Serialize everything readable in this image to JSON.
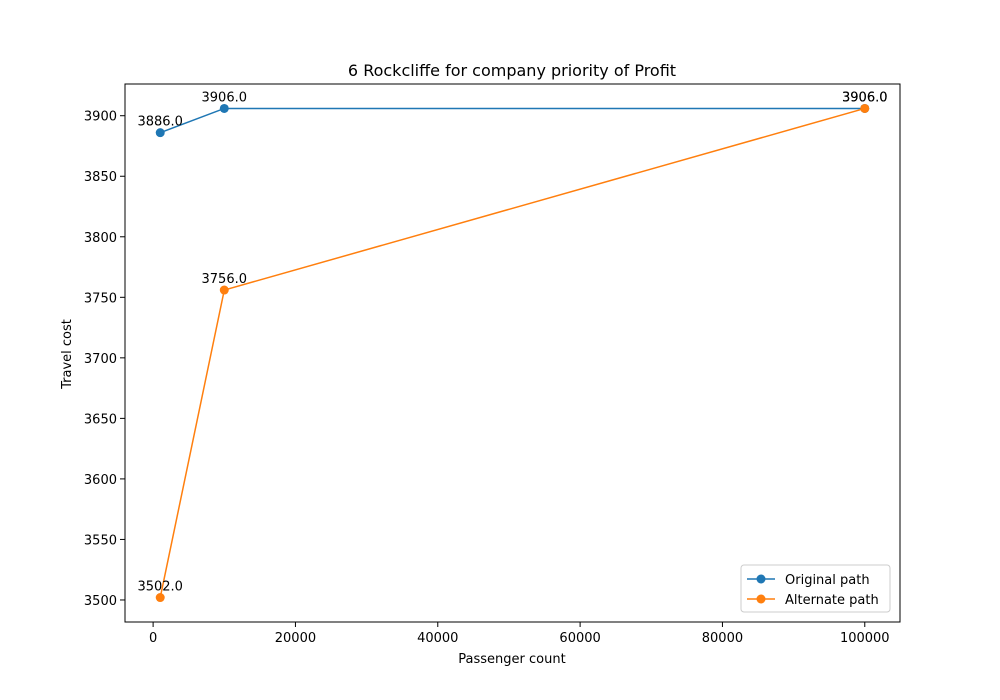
{
  "chart_data": {
    "type": "line",
    "title": "6 Rockcliffe for company priority of Profit",
    "xlabel": "Passenger count",
    "ylabel": "Travel cost",
    "xlim": [
      -3950,
      104950
    ],
    "ylim": [
      3481.8,
      3926.2
    ],
    "xticks": [
      0,
      20000,
      40000,
      60000,
      80000,
      100000
    ],
    "xtick_labels": [
      "0",
      "20000",
      "40000",
      "60000",
      "80000",
      "100000"
    ],
    "yticks": [
      3500,
      3550,
      3600,
      3650,
      3700,
      3750,
      3800,
      3850,
      3900
    ],
    "ytick_labels": [
      "3500",
      "3550",
      "3600",
      "3650",
      "3700",
      "3750",
      "3800",
      "3850",
      "3900"
    ],
    "grid": false,
    "legend_position": "lower-right",
    "series": [
      {
        "name": "Original path",
        "color": "#1f77b4",
        "marker": "circle",
        "x": [
          1000,
          10000,
          100000
        ],
        "y": [
          3886.0,
          3906.0,
          3906.0
        ],
        "labels": [
          "3886.0",
          "3906.0",
          "3906.0"
        ]
      },
      {
        "name": "Alternate path",
        "color": "#ff7f0e",
        "marker": "circle",
        "x": [
          1000,
          10000,
          100000
        ],
        "y": [
          3502.0,
          3756.0,
          3906.0
        ],
        "labels": [
          "3502.0",
          "3756.0",
          "3906.0"
        ]
      }
    ]
  }
}
